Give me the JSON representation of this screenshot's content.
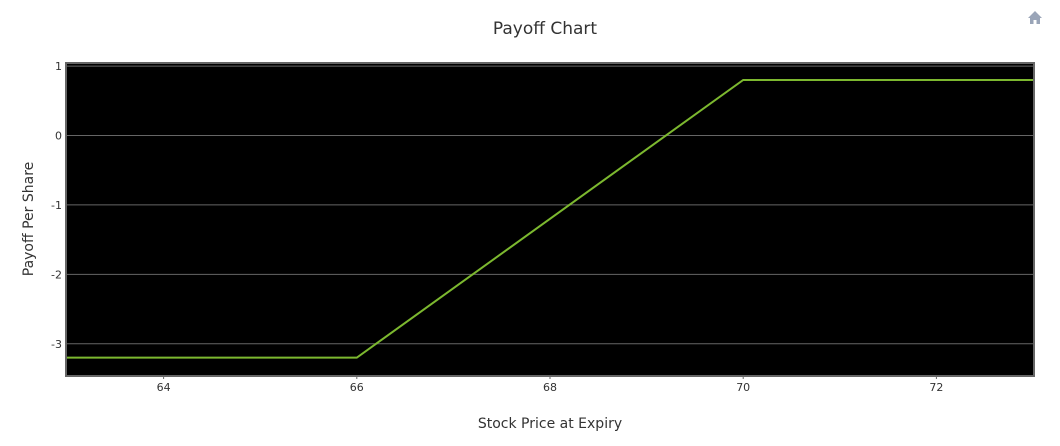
{
  "chart_data": {
    "type": "line",
    "title": "Payoff Chart",
    "x_label": "Stock Price at Expiry",
    "y_label": "Payoff Per Share",
    "x": [
      63,
      66,
      70,
      73
    ],
    "series": [
      {
        "color": "#7cb82f",
        "values": [
          -3.2,
          -3.2,
          0.8,
          0.8
        ]
      }
    ],
    "xlim": [
      63,
      73
    ],
    "xticks": [
      64,
      66,
      68,
      70,
      72
    ],
    "ylim": [
      -3.45,
      1.03
    ],
    "yticks": [
      1,
      0,
      -1,
      -2,
      -3
    ],
    "grid": true
  }
}
